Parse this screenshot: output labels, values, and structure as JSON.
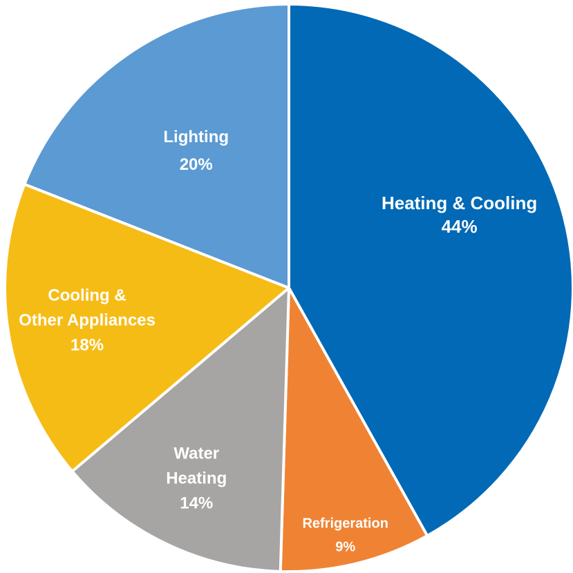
{
  "chart_data": {
    "type": "pie",
    "categories": [
      "Heating & Cooling",
      "Refrigeration",
      "Water Heating",
      "Cooling & Other Appliances",
      "Lighting"
    ],
    "values": [
      44,
      9,
      14,
      18,
      20
    ],
    "labels": [
      {
        "lines": [
          "Heating & Cooling"
        ],
        "value": "44%"
      },
      {
        "lines": [
          "Refrigeration"
        ],
        "value": "9%"
      },
      {
        "lines": [
          "Water",
          "Heating"
        ],
        "value": "14%"
      },
      {
        "lines": [
          "Cooling &",
          "Other Appliances"
        ],
        "value": "18%"
      },
      {
        "lines": [
          "Lighting"
        ],
        "value": "20%"
      }
    ],
    "colors": [
      "#0169b6",
      "#ef8333",
      "#a6a5a4",
      "#f6bc16",
      "#5b9ad3"
    ],
    "start_angle_deg": 0,
    "direction": "clockwise",
    "legend": "none"
  }
}
